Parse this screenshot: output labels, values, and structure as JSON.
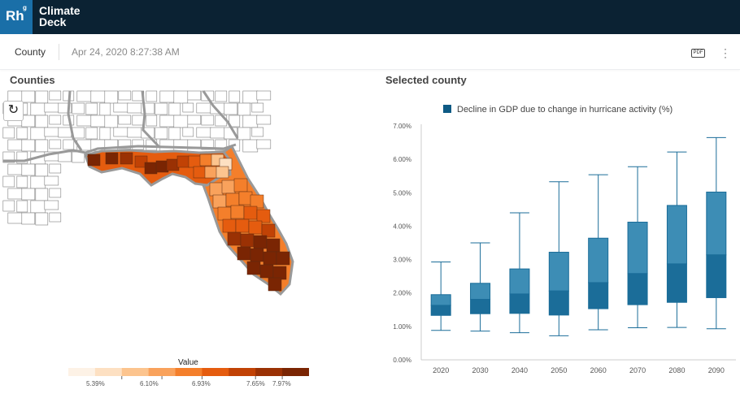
{
  "app": {
    "logo_text": "Rh",
    "logo_sup": "g",
    "brand_line1": "Climate",
    "brand_line2": "Deck"
  },
  "toolbar": {
    "tab_label": "County",
    "timestamp": "Apr 24, 2020 8:27:38 AM",
    "pdf_label": "PDF"
  },
  "map_panel": {
    "title": "Counties",
    "legend_title": "Value",
    "legend_colors": [
      "#fdf2e6",
      "#fde0c2",
      "#fcc48e",
      "#f9a25c",
      "#f47f2b",
      "#e55c0f",
      "#c14205",
      "#9a3104",
      "#7a2503"
    ],
    "legend_ticks": [
      "5.39%",
      "6.10%",
      "6.93%",
      "7.65%",
      "7.97%"
    ],
    "base_color": "#ffffff",
    "border_color": "#999999"
  },
  "chart_panel": {
    "title": "Selected county"
  },
  "chart_data": {
    "type": "boxplot",
    "legend": "Decline in GDP due to change in hurricane activity (%)",
    "categories": [
      "2020",
      "2030",
      "2040",
      "2050",
      "2060",
      "2070",
      "2080",
      "2090"
    ],
    "y_ticks": [
      "0.00%",
      "1.00%",
      "2.00%",
      "3.00%",
      "4.00%",
      "5.00%",
      "6.00%",
      "7.00%"
    ],
    "ylim": [
      0,
      7
    ],
    "boxes": [
      {
        "min": 0.88,
        "q1": 1.33,
        "median": 1.63,
        "q3": 1.95,
        "max": 2.93
      },
      {
        "min": 0.86,
        "q1": 1.38,
        "median": 1.81,
        "q3": 2.29,
        "max": 3.5
      },
      {
        "min": 0.81,
        "q1": 1.39,
        "median": 1.97,
        "q3": 2.72,
        "max": 4.4
      },
      {
        "min": 0.72,
        "q1": 1.34,
        "median": 2.06,
        "q3": 3.22,
        "max": 5.33
      },
      {
        "min": 0.9,
        "q1": 1.53,
        "median": 2.31,
        "q3": 3.64,
        "max": 5.54
      },
      {
        "min": 0.96,
        "q1": 1.65,
        "median": 2.58,
        "q3": 4.12,
        "max": 5.78
      },
      {
        "min": 0.97,
        "q1": 1.72,
        "median": 2.87,
        "q3": 4.62,
        "max": 6.22
      },
      {
        "min": 0.93,
        "q1": 1.86,
        "median": 3.14,
        "q3": 5.02,
        "max": 6.65
      }
    ],
    "colors": {
      "upper_box": "#3d8db5",
      "lower_box": "#1b6d99",
      "whisker": "#1b6d99",
      "legend_swatch": "#0e5a84"
    }
  }
}
